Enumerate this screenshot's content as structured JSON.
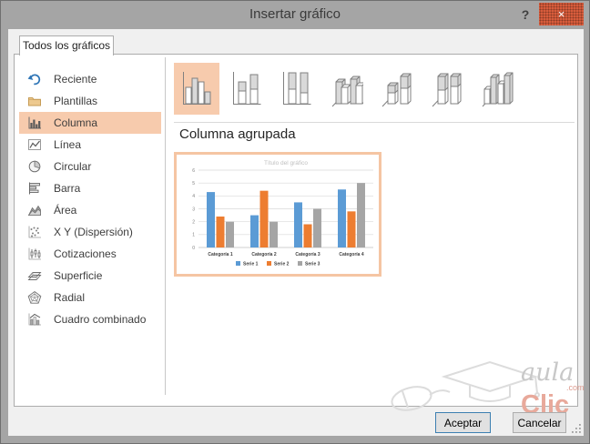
{
  "window": {
    "title": "Insertar gráfico",
    "help_label": "?",
    "close_label": "×"
  },
  "tab": {
    "label": "Todos los gráficos"
  },
  "sidebar": {
    "selected": "Columna",
    "items": [
      {
        "label": "Reciente",
        "icon": "recent-icon",
        "selected": false
      },
      {
        "label": "Plantillas",
        "icon": "templates-icon",
        "selected": false
      },
      {
        "label": "Columna",
        "icon": "column-icon",
        "selected": true
      },
      {
        "label": "Línea",
        "icon": "line-icon",
        "selected": false
      },
      {
        "label": "Circular",
        "icon": "pie-icon",
        "selected": false
      },
      {
        "label": "Barra",
        "icon": "bar-icon",
        "selected": false
      },
      {
        "label": "Área",
        "icon": "area-icon",
        "selected": false
      },
      {
        "label": "X Y (Dispersión)",
        "icon": "scatter-icon",
        "selected": false
      },
      {
        "label": "Cotizaciones",
        "icon": "stock-icon",
        "selected": false
      },
      {
        "label": "Superficie",
        "icon": "surface-icon",
        "selected": false
      },
      {
        "label": "Radial",
        "icon": "radar-icon",
        "selected": false
      },
      {
        "label": "Cuadro combinado",
        "icon": "combo-icon",
        "selected": false
      }
    ]
  },
  "subtypes": {
    "selected_index": 0,
    "items": [
      {
        "name": "columna-agrupada"
      },
      {
        "name": "columna-apilada"
      },
      {
        "name": "columna-apilada-100"
      },
      {
        "name": "columna-agrupada-3d"
      },
      {
        "name": "columna-apilada-3d"
      },
      {
        "name": "columna-apilada-100-3d"
      },
      {
        "name": "columna-3d"
      }
    ]
  },
  "section_heading": "Columna agrupada",
  "chart_data": {
    "type": "bar",
    "title": "Título del gráfico",
    "categories": [
      "Categoría 1",
      "Categoría 2",
      "Categoría 3",
      "Categoría 4"
    ],
    "series": [
      {
        "name": "Serie 1",
        "color": "#5B9BD5",
        "values": [
          4.3,
          2.5,
          3.5,
          4.5
        ]
      },
      {
        "name": "Serie 2",
        "color": "#ED7D31",
        "values": [
          2.4,
          4.4,
          1.8,
          2.8
        ]
      },
      {
        "name": "Serie 3",
        "color": "#A5A5A5",
        "values": [
          2.0,
          2.0,
          3.0,
          5.0
        ]
      }
    ],
    "ylim": [
      0,
      6
    ],
    "ytick_step": 1,
    "grid": true,
    "legend_position": "bottom"
  },
  "buttons": {
    "accept": "Aceptar",
    "cancel": "Cancelar"
  },
  "watermark": {
    "word1": "aula",
    "suffix": ".com",
    "word2": "Clic"
  },
  "colors": {
    "titlebar": "#A5A5A5",
    "selection_peach": "#F7CBAD",
    "preview_border": "#F5C5A3",
    "close_red": "#D85C3C",
    "default_button_border": "#3C7FB1",
    "series_blue": "#5B9BD5",
    "series_orange": "#ED7D31",
    "series_gray": "#A5A5A5"
  }
}
